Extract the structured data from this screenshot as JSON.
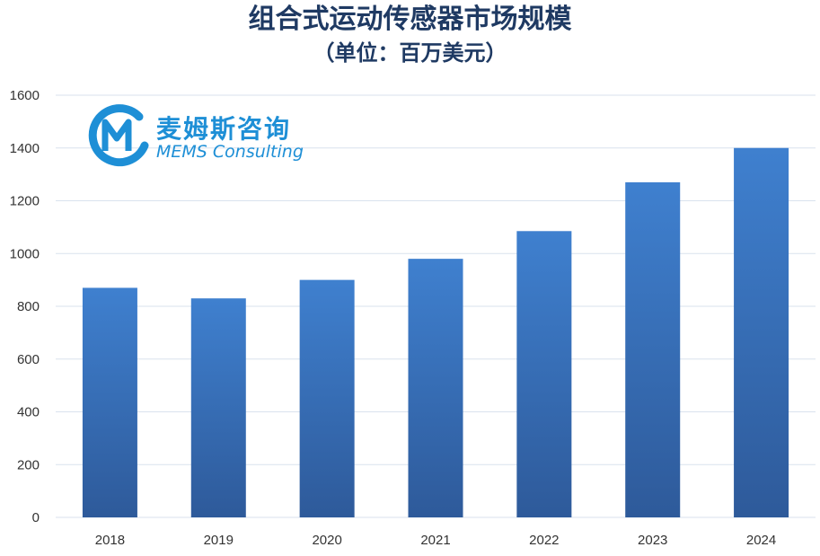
{
  "chart_data": {
    "type": "bar",
    "title": "组合式运动传感器市场规模",
    "subtitle": "（单位：百万美元）",
    "categories": [
      "2018",
      "2019",
      "2020",
      "2021",
      "2022",
      "2023",
      "2024"
    ],
    "values": [
      870,
      830,
      900,
      980,
      1085,
      1270,
      1400
    ],
    "ylim": [
      0,
      1600
    ],
    "yticks": [
      0,
      200,
      400,
      600,
      800,
      1000,
      1200,
      1400,
      1600
    ],
    "grid": true,
    "bar_color_top": "#3f80cf",
    "bar_color_bottom": "#2e5a9a",
    "grid_color": "#d9e2ee"
  },
  "logo": {
    "chinese": "麦姆斯咨询",
    "english": "MEMS Consulting",
    "color": "#1e8fd6"
  }
}
